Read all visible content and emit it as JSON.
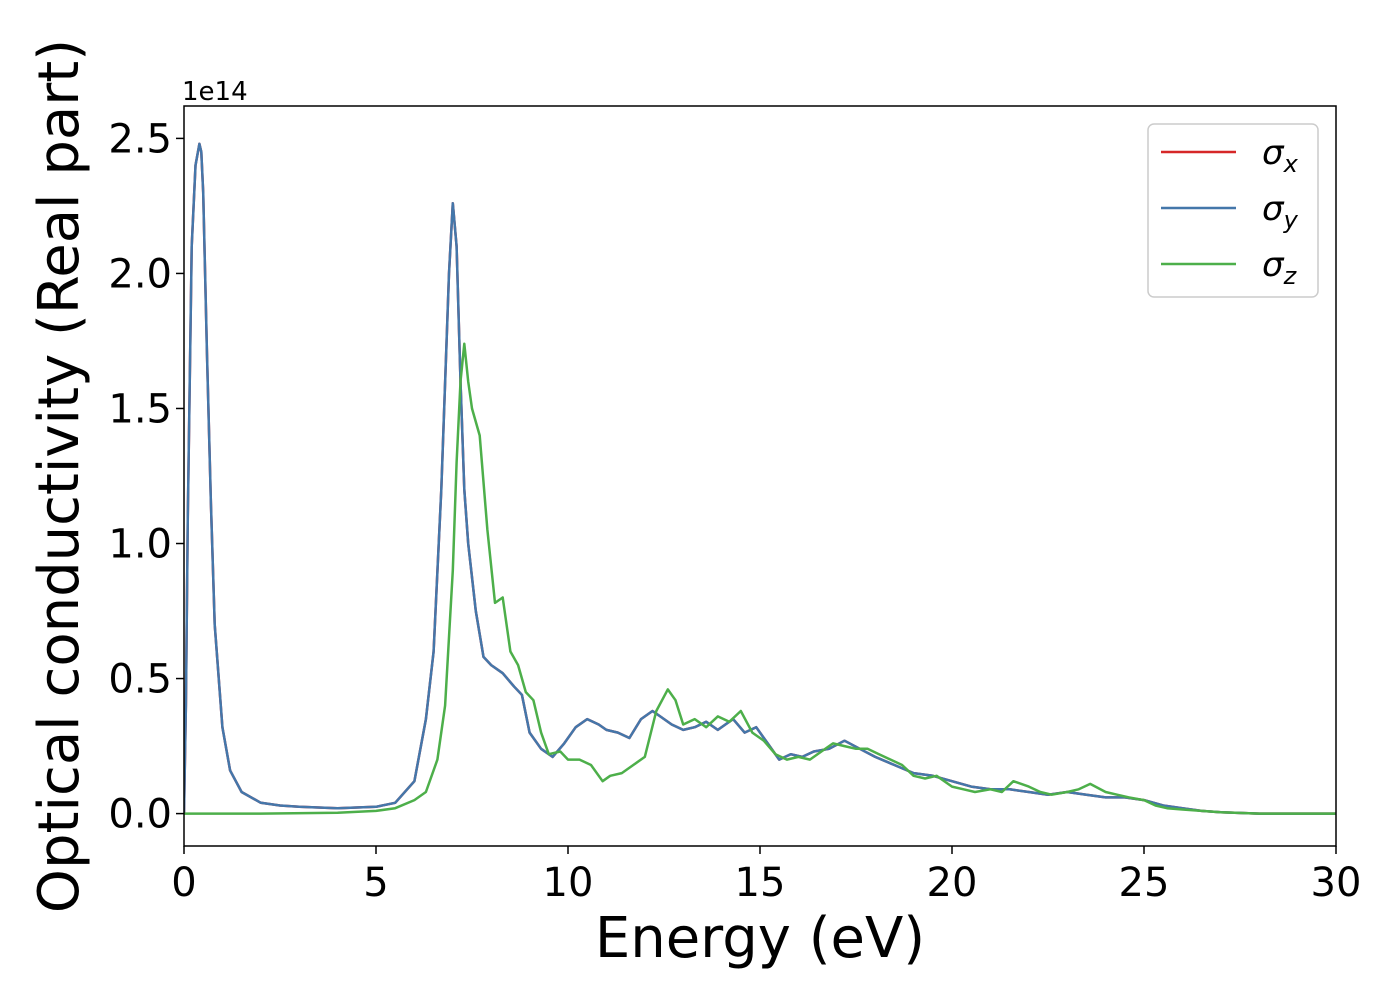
{
  "chart_data": {
    "type": "line",
    "xlabel": "Energy (eV)",
    "ylabel": "Optical conductivity (Real part)",
    "y_offset_label": "1e14",
    "xlim": [
      0,
      30
    ],
    "ylim": [
      -0.12,
      2.62
    ],
    "x_ticks": [
      0,
      5,
      10,
      15,
      20,
      25,
      30
    ],
    "x_tick_labels": [
      "0",
      "5",
      "10",
      "15",
      "20",
      "25",
      "30"
    ],
    "y_ticks": [
      0.0,
      0.5,
      1.0,
      1.5,
      2.0,
      2.5
    ],
    "y_tick_labels": [
      "0.0",
      "0.5",
      "1.0",
      "1.5",
      "2.0",
      "2.5"
    ],
    "grid": false,
    "legend_position": "top-right",
    "series": [
      {
        "name": "σx",
        "legend_symbol": "σ",
        "legend_subscript": "x",
        "color": "#d62728",
        "x": [
          0,
          0.05,
          0.1,
          0.2,
          0.3,
          0.4,
          0.45,
          0.5,
          0.6,
          0.7,
          0.8,
          1.0,
          1.2,
          1.5,
          2,
          2.5,
          3,
          4,
          5,
          5.5,
          6,
          6.3,
          6.5,
          6.7,
          6.9,
          7.0,
          7.1,
          7.2,
          7.3,
          7.4,
          7.6,
          7.8,
          8.0,
          8.3,
          8.6,
          8.8,
          9.0,
          9.3,
          9.6,
          9.9,
          10.2,
          10.5,
          10.8,
          11.0,
          11.3,
          11.6,
          11.9,
          12.2,
          12.4,
          12.7,
          13.0,
          13.3,
          13.6,
          13.9,
          14.1,
          14.3,
          14.6,
          14.9,
          15.2,
          15.5,
          15.8,
          16.1,
          16.4,
          16.8,
          17.2,
          17.6,
          18.0,
          18.5,
          19.0,
          19.5,
          20.0,
          20.5,
          21.0,
          21.5,
          22.0,
          22.5,
          23.0,
          23.5,
          24.0,
          24.5,
          25.0,
          25.5,
          26.0,
          26.5,
          27.0,
          28.0,
          29.0,
          30.0
        ],
        "y": [
          0,
          0.4,
          1.1,
          2.1,
          2.4,
          2.48,
          2.45,
          2.3,
          1.7,
          1.15,
          0.7,
          0.32,
          0.16,
          0.08,
          0.04,
          0.03,
          0.025,
          0.02,
          0.025,
          0.04,
          0.12,
          0.35,
          0.6,
          1.2,
          2.0,
          2.26,
          2.1,
          1.6,
          1.2,
          1.0,
          0.75,
          0.58,
          0.55,
          0.52,
          0.47,
          0.44,
          0.3,
          0.24,
          0.21,
          0.26,
          0.32,
          0.35,
          0.33,
          0.31,
          0.3,
          0.28,
          0.35,
          0.38,
          0.36,
          0.33,
          0.31,
          0.32,
          0.34,
          0.31,
          0.33,
          0.35,
          0.3,
          0.32,
          0.26,
          0.2,
          0.22,
          0.21,
          0.23,
          0.24,
          0.27,
          0.24,
          0.21,
          0.18,
          0.15,
          0.14,
          0.12,
          0.1,
          0.09,
          0.09,
          0.08,
          0.07,
          0.08,
          0.07,
          0.06,
          0.06,
          0.05,
          0.03,
          0.02,
          0.01,
          0.005,
          0,
          0,
          0
        ]
      },
      {
        "name": "σy",
        "legend_symbol": "σ",
        "legend_subscript": "y",
        "color": "#4477aa",
        "x": [
          0,
          0.05,
          0.1,
          0.2,
          0.3,
          0.4,
          0.45,
          0.5,
          0.6,
          0.7,
          0.8,
          1.0,
          1.2,
          1.5,
          2,
          2.5,
          3,
          4,
          5,
          5.5,
          6,
          6.3,
          6.5,
          6.7,
          6.9,
          7.0,
          7.1,
          7.2,
          7.3,
          7.4,
          7.6,
          7.8,
          8.0,
          8.3,
          8.6,
          8.8,
          9.0,
          9.3,
          9.6,
          9.9,
          10.2,
          10.5,
          10.8,
          11.0,
          11.3,
          11.6,
          11.9,
          12.2,
          12.4,
          12.7,
          13.0,
          13.3,
          13.6,
          13.9,
          14.1,
          14.3,
          14.6,
          14.9,
          15.2,
          15.5,
          15.8,
          16.1,
          16.4,
          16.8,
          17.2,
          17.6,
          18.0,
          18.5,
          19.0,
          19.5,
          20.0,
          20.5,
          21.0,
          21.5,
          22.0,
          22.5,
          23.0,
          23.5,
          24.0,
          24.5,
          25.0,
          25.5,
          26.0,
          26.5,
          27.0,
          28.0,
          29.0,
          30.0
        ],
        "y": [
          0,
          0.4,
          1.1,
          2.1,
          2.4,
          2.48,
          2.45,
          2.3,
          1.7,
          1.15,
          0.7,
          0.32,
          0.16,
          0.08,
          0.04,
          0.03,
          0.025,
          0.02,
          0.025,
          0.04,
          0.12,
          0.35,
          0.6,
          1.2,
          2.0,
          2.26,
          2.1,
          1.6,
          1.2,
          1.0,
          0.75,
          0.58,
          0.55,
          0.52,
          0.47,
          0.44,
          0.3,
          0.24,
          0.21,
          0.26,
          0.32,
          0.35,
          0.33,
          0.31,
          0.3,
          0.28,
          0.35,
          0.38,
          0.36,
          0.33,
          0.31,
          0.32,
          0.34,
          0.31,
          0.33,
          0.35,
          0.3,
          0.32,
          0.26,
          0.2,
          0.22,
          0.21,
          0.23,
          0.24,
          0.27,
          0.24,
          0.21,
          0.18,
          0.15,
          0.14,
          0.12,
          0.1,
          0.09,
          0.09,
          0.08,
          0.07,
          0.08,
          0.07,
          0.06,
          0.06,
          0.05,
          0.03,
          0.02,
          0.01,
          0.005,
          0,
          0,
          0
        ]
      },
      {
        "name": "σz",
        "legend_symbol": "σ",
        "legend_subscript": "z",
        "color": "#4daf4a",
        "x": [
          0,
          2,
          4,
          5,
          5.5,
          6,
          6.3,
          6.6,
          6.8,
          7.0,
          7.1,
          7.2,
          7.3,
          7.4,
          7.5,
          7.7,
          7.9,
          8.1,
          8.3,
          8.5,
          8.7,
          8.9,
          9.1,
          9.3,
          9.5,
          9.8,
          10.0,
          10.3,
          10.6,
          10.9,
          11.1,
          11.4,
          11.7,
          12.0,
          12.3,
          12.6,
          12.8,
          13.0,
          13.3,
          13.6,
          13.9,
          14.2,
          14.5,
          14.8,
          15.1,
          15.4,
          15.7,
          16.0,
          16.3,
          16.6,
          16.9,
          17.2,
          17.5,
          17.8,
          18.1,
          18.4,
          18.7,
          19.0,
          19.3,
          19.6,
          20.0,
          20.3,
          20.6,
          21.0,
          21.3,
          21.6,
          22.0,
          22.3,
          22.6,
          23.0,
          23.3,
          23.6,
          24.0,
          24.3,
          24.6,
          25.0,
          25.3,
          25.6,
          26.0,
          26.5,
          27.0,
          28.0,
          29.0,
          30.0
        ],
        "y": [
          0,
          0,
          0.003,
          0.01,
          0.02,
          0.05,
          0.08,
          0.2,
          0.4,
          0.9,
          1.3,
          1.6,
          1.74,
          1.6,
          1.5,
          1.4,
          1.05,
          0.78,
          0.8,
          0.6,
          0.55,
          0.45,
          0.42,
          0.3,
          0.22,
          0.23,
          0.2,
          0.2,
          0.18,
          0.12,
          0.14,
          0.15,
          0.18,
          0.21,
          0.38,
          0.46,
          0.42,
          0.33,
          0.35,
          0.32,
          0.36,
          0.34,
          0.38,
          0.3,
          0.27,
          0.22,
          0.2,
          0.21,
          0.2,
          0.23,
          0.26,
          0.25,
          0.24,
          0.24,
          0.22,
          0.2,
          0.18,
          0.14,
          0.13,
          0.14,
          0.1,
          0.09,
          0.08,
          0.09,
          0.08,
          0.12,
          0.1,
          0.08,
          0.07,
          0.08,
          0.09,
          0.11,
          0.08,
          0.07,
          0.06,
          0.05,
          0.03,
          0.02,
          0.015,
          0.01,
          0.005,
          0,
          0,
          0
        ]
      }
    ]
  }
}
